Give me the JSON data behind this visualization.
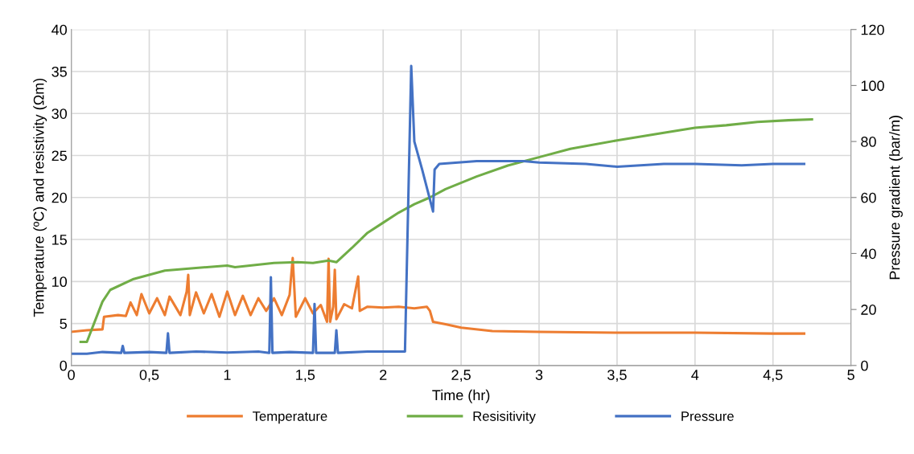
{
  "chart_data": {
    "type": "line",
    "xlabel": "Time (hr)",
    "ylabel": "Temperature (ºC) and resistivity (Ωm)",
    "y2label": "Pressure gradient (bar/m)",
    "xlim": [
      0,
      5
    ],
    "xticks": [
      0,
      {
        "value": 0.5,
        "label": "0,5"
      },
      1,
      {
        "value": 1.5,
        "label": "1,5"
      },
      2,
      {
        "value": 2.5,
        "label": "2,5"
      },
      3,
      {
        "value": 3.5,
        "label": "3,5"
      },
      4,
      {
        "value": 4.5,
        "label": "4,5"
      },
      5
    ],
    "ylim": [
      0,
      40
    ],
    "yticks": [
      0,
      5,
      10,
      15,
      20,
      25,
      30,
      35,
      40
    ],
    "y2lim": [
      0,
      120
    ],
    "y2ticks": [
      0,
      20,
      40,
      60,
      80,
      100,
      120
    ],
    "grid": true,
    "legend": "bottom",
    "line_style": "solid",
    "marker": "none",
    "series": [
      {
        "name": "Temperature",
        "color": "#ed7d31",
        "x": [
          0,
          0.1,
          0.2,
          0.21,
          0.3,
          0.35,
          0.38,
          0.42,
          0.45,
          0.5,
          0.55,
          0.6,
          0.63,
          0.7,
          0.74,
          0.75,
          0.76,
          0.8,
          0.85,
          0.9,
          0.95,
          1.0,
          1.05,
          1.1,
          1.15,
          1.2,
          1.25,
          1.3,
          1.35,
          1.4,
          1.42,
          1.44,
          1.5,
          1.55,
          1.6,
          1.64,
          1.65,
          1.66,
          1.68,
          1.69,
          1.7,
          1.75,
          1.8,
          1.84,
          1.85,
          1.9,
          2.0,
          2.1,
          2.2,
          2.28,
          2.3,
          2.32,
          2.4,
          2.5,
          2.7,
          3.0,
          3.5,
          4.0,
          4.5,
          4.7
        ],
        "values": [
          4.0,
          4.2,
          4.3,
          5.8,
          6.0,
          5.9,
          7.5,
          6.0,
          8.5,
          6.2,
          8.0,
          6.0,
          8.2,
          6.0,
          8.8,
          10.8,
          6.0,
          8.7,
          6.2,
          8.5,
          5.8,
          8.8,
          6.0,
          8.3,
          6.0,
          8.0,
          6.5,
          8.0,
          6.0,
          8.4,
          12.8,
          5.8,
          8.0,
          6.2,
          7.2,
          5.2,
          12.7,
          5.2,
          7.0,
          11.4,
          5.5,
          7.3,
          6.8,
          10.6,
          6.5,
          7.0,
          6.9,
          7.0,
          6.8,
          7.0,
          6.5,
          5.2,
          4.9,
          4.5,
          4.1,
          4.0,
          3.9,
          3.9,
          3.8,
          3.8
        ]
      },
      {
        "name": "Resisitivity",
        "color": "#70ad47",
        "x": [
          0.06,
          0.1,
          0.2,
          0.25,
          0.4,
          0.6,
          0.8,
          1.0,
          1.05,
          1.3,
          1.45,
          1.55,
          1.65,
          1.7,
          1.8,
          1.9,
          2.0,
          2.1,
          2.2,
          2.3,
          2.4,
          2.6,
          2.8,
          3.0,
          3.2,
          3.5,
          3.8,
          4.0,
          4.2,
          4.4,
          4.6,
          4.75
        ],
        "values": [
          2.8,
          2.8,
          7.6,
          9.0,
          10.3,
          11.3,
          11.6,
          11.9,
          11.7,
          12.2,
          12.3,
          12.2,
          12.5,
          12.3,
          14.0,
          15.8,
          17.0,
          18.2,
          19.2,
          20.0,
          21.0,
          22.5,
          23.8,
          24.8,
          25.8,
          26.8,
          27.7,
          28.3,
          28.6,
          29.0,
          29.2,
          29.3
        ]
      },
      {
        "name": "Pressure",
        "color": "#4472c4",
        "axis": "y2",
        "x": [
          0,
          0.1,
          0.2,
          0.32,
          0.33,
          0.34,
          0.5,
          0.61,
          0.62,
          0.63,
          0.8,
          1.0,
          1.2,
          1.27,
          1.28,
          1.29,
          1.4,
          1.55,
          1.56,
          1.57,
          1.69,
          1.7,
          1.71,
          1.9,
          2.0,
          2.14,
          2.18,
          2.2,
          2.25,
          2.32,
          2.33,
          2.36,
          2.6,
          2.9,
          3.0,
          3.3,
          3.5,
          3.8,
          4.0,
          4.3,
          4.5,
          4.7
        ],
        "values": [
          4.2,
          4.2,
          4.8,
          4.5,
          7.0,
          4.5,
          4.8,
          4.5,
          11.5,
          4.5,
          5.0,
          4.6,
          5.0,
          4.5,
          31.5,
          4.5,
          4.8,
          4.5,
          22.0,
          4.5,
          4.5,
          12.6,
          4.5,
          5.0,
          5.0,
          5.0,
          107.0,
          80.0,
          70.0,
          55.0,
          70.0,
          72.0,
          73.0,
          73.0,
          72.5,
          72.0,
          71.0,
          72.0,
          72.0,
          71.5,
          72.0,
          72.0
        ]
      }
    ]
  }
}
